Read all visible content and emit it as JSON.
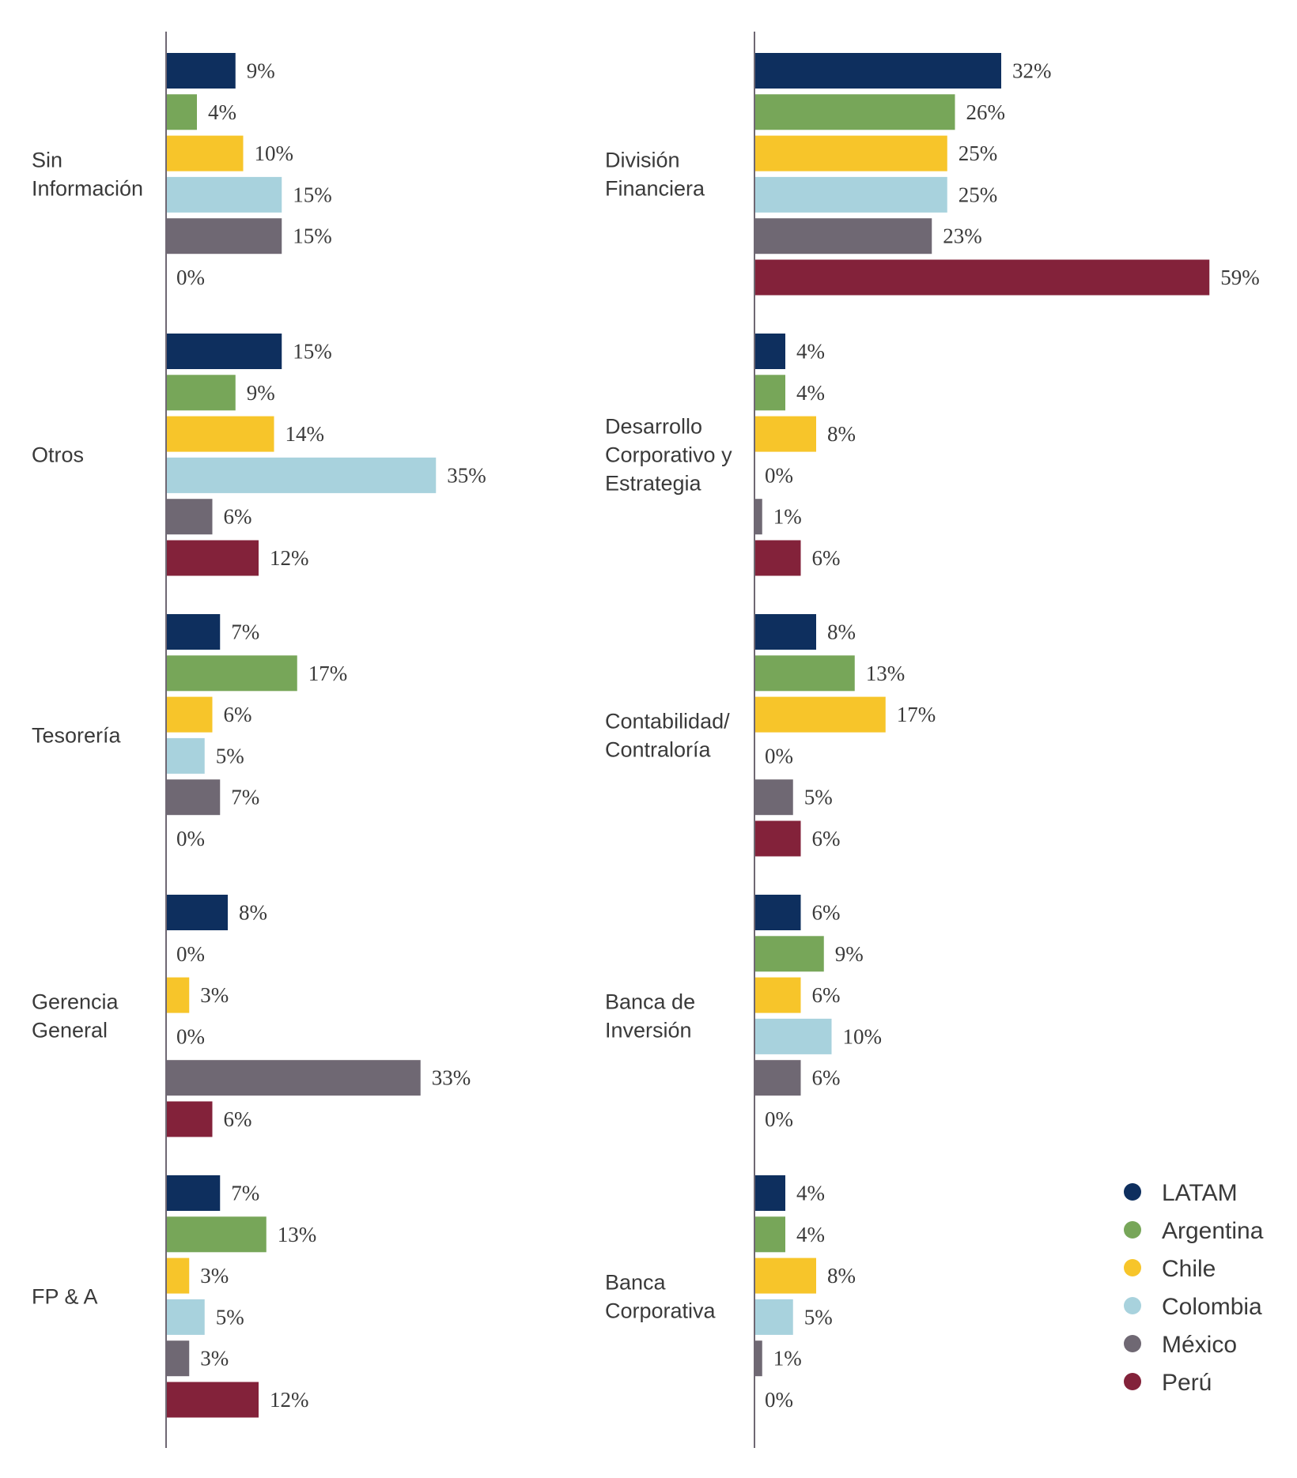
{
  "chart_data": {
    "type": "bar",
    "orientation": "horizontal",
    "series": [
      {
        "name": "LATAM",
        "color": "#0e2f5e"
      },
      {
        "name": "Argentina",
        "color": "#77a659"
      },
      {
        "name": "Chile",
        "color": "#f7c52a"
      },
      {
        "name": "Colombia",
        "color": "#a8d2dd"
      },
      {
        "name": "México",
        "color": "#6f6873"
      },
      {
        "name": "Perú",
        "color": "#83223a"
      }
    ],
    "unit": "%",
    "legend_position": "bottom-right",
    "panels": [
      {
        "categories": [
          {
            "label": [
              "Sin",
              "Información"
            ],
            "values": [
              9,
              4,
              10,
              15,
              15,
              0
            ]
          },
          {
            "label": [
              "Otros"
            ],
            "values": [
              15,
              9,
              14,
              35,
              6,
              12
            ]
          },
          {
            "label": [
              "Tesorería"
            ],
            "values": [
              7,
              17,
              6,
              5,
              7,
              0
            ]
          },
          {
            "label": [
              "Gerencia",
              "General"
            ],
            "values": [
              8,
              0,
              3,
              0,
              33,
              6
            ]
          },
          {
            "label": [
              "FP & A"
            ],
            "values": [
              7,
              13,
              3,
              5,
              3,
              12
            ]
          }
        ]
      },
      {
        "categories": [
          {
            "label": [
              "División",
              "Financiera"
            ],
            "values": [
              32,
              26,
              25,
              25,
              23,
              59
            ]
          },
          {
            "label": [
              "Desarrollo",
              "Corporativo y",
              "Estrategia"
            ],
            "values": [
              4,
              4,
              8,
              0,
              1,
              6
            ]
          },
          {
            "label": [
              "Contabilidad/",
              "Contraloría"
            ],
            "values": [
              8,
              13,
              17,
              0,
              5,
              6
            ]
          },
          {
            "label": [
              "Banca de",
              "Inversión"
            ],
            "values": [
              6,
              9,
              6,
              10,
              6,
              0
            ]
          },
          {
            "label": [
              "Banca",
              "Corporativa"
            ],
            "values": [
              4,
              4,
              8,
              5,
              1,
              0
            ]
          }
        ]
      }
    ]
  }
}
